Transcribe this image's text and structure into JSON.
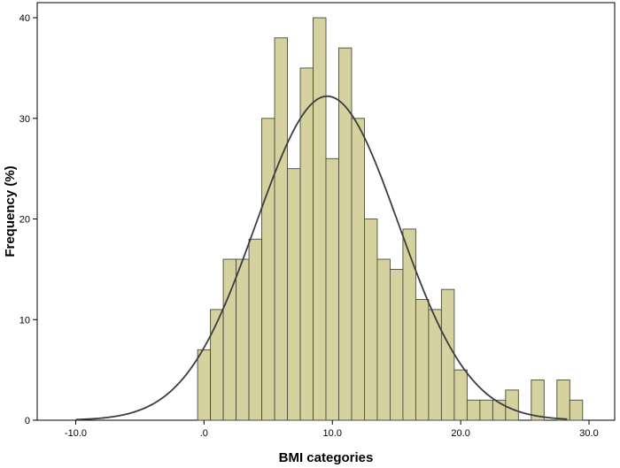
{
  "chart_data": {
    "type": "bar",
    "title": "",
    "xlabel": "BMI categories",
    "ylabel": "Frequency (%)",
    "xlim": [
      -13,
      32
    ],
    "ylim": [
      0,
      41.5
    ],
    "grid": false,
    "x_ticks": [
      -10,
      0,
      10,
      20,
      30
    ],
    "x_tick_labels": [
      "-10.0",
      ".0",
      "10.0",
      "20.0",
      "30.0"
    ],
    "y_ticks": [
      0,
      10,
      20,
      30,
      40
    ],
    "y_tick_labels": [
      "0",
      "10",
      "20",
      "30",
      "40"
    ],
    "bin_start": -0.5,
    "bin_width": 1.0,
    "values": [
      7,
      11,
      16,
      16,
      18,
      30,
      38,
      25,
      35,
      40,
      26,
      37,
      30,
      20,
      16,
      15,
      19,
      12,
      11,
      13,
      5,
      2,
      2,
      2,
      3,
      0,
      4,
      0,
      4,
      2
    ],
    "normal_curve": {
      "mean": 9.6,
      "sd": 5.55,
      "peak": 32.2
    },
    "colors": {
      "bar_fill": "#d6d29f",
      "bar_stroke": "#4a4a3c",
      "curve": "#3c3c3c",
      "frame": "#000000"
    }
  }
}
